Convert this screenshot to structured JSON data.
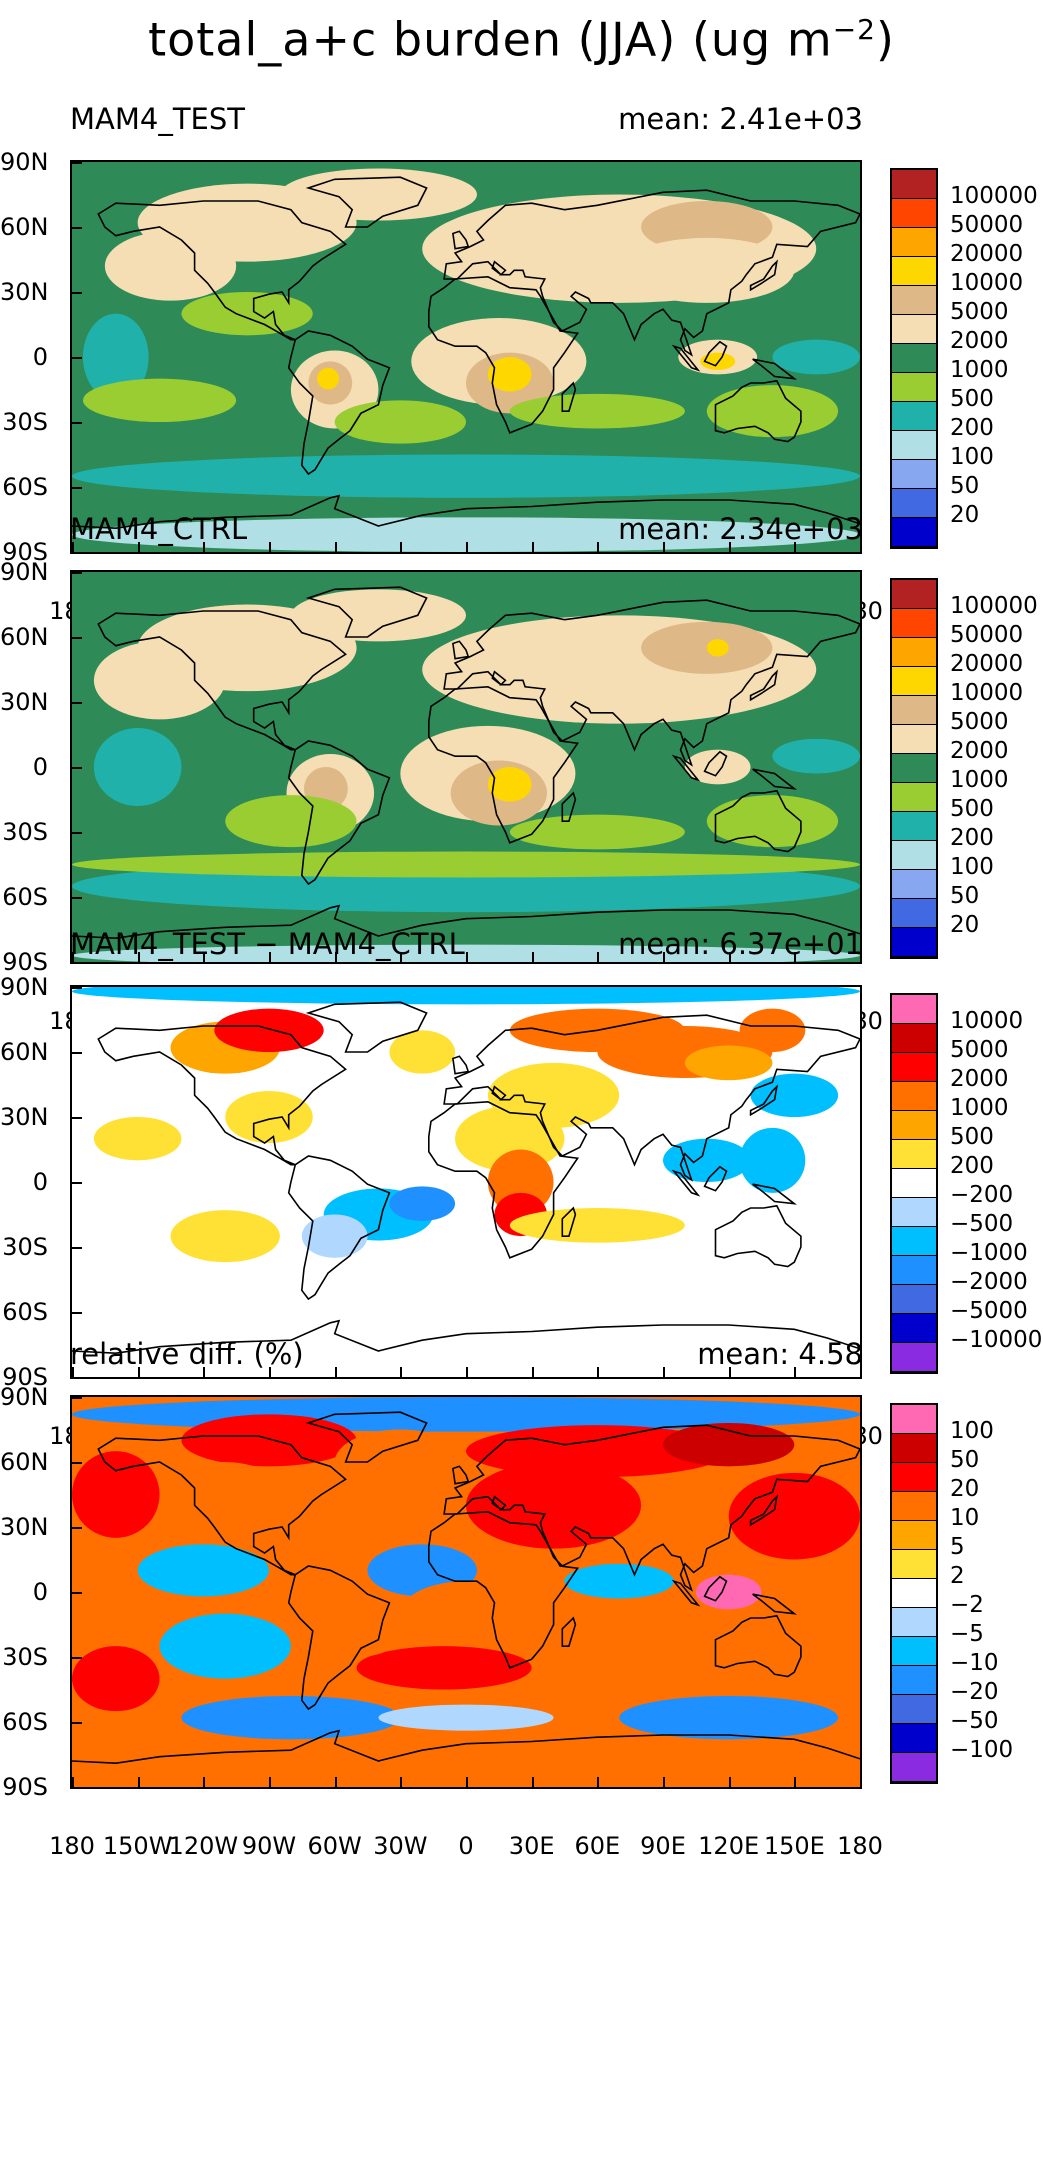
{
  "title": "total_a+c burden (JJA) (ug m",
  "title_sup": "−2",
  "title_close": ")",
  "lat_labels": [
    "90N",
    "60N",
    "30N",
    "0",
    "30S",
    "60S",
    "90S"
  ],
  "lon_labels": [
    "180",
    "150W",
    "120W",
    "90W",
    "60W",
    "30W",
    "0",
    "30E",
    "60E",
    "90E",
    "120E",
    "150E",
    "180"
  ],
  "panels": [
    {
      "id": "test",
      "label": "MAM4_TEST",
      "mean": "mean: 2.41e+03",
      "base_color": "#2e8b57",
      "cb_colors": [
        "#b22222",
        "#ff4500",
        "#ffa500",
        "#ffd700",
        "#deb887",
        "#f5deb3",
        "#2e8b57",
        "#9acd32",
        "#20b2aa",
        "#b0e0e6",
        "#87a8f0",
        "#4169e1",
        "#0000cd"
      ],
      "cb_labels": [
        "100000",
        "50000",
        "20000",
        "10000",
        "5000",
        "2000",
        "1000",
        "500",
        "200",
        "100",
        "50",
        "20"
      ]
    },
    {
      "id": "ctrl",
      "label": "MAM4_CTRL",
      "mean": "mean: 2.34e+03",
      "base_color": "#2e8b57",
      "cb_colors": [
        "#b22222",
        "#ff4500",
        "#ffa500",
        "#ffd700",
        "#deb887",
        "#f5deb3",
        "#2e8b57",
        "#9acd32",
        "#20b2aa",
        "#b0e0e6",
        "#87a8f0",
        "#4169e1",
        "#0000cd"
      ],
      "cb_labels": [
        "100000",
        "50000",
        "20000",
        "10000",
        "5000",
        "2000",
        "1000",
        "500",
        "200",
        "100",
        "50",
        "20"
      ]
    },
    {
      "id": "diff",
      "label": "MAM4_TEST − MAM4_CTRL",
      "mean": "mean: 6.37e+01",
      "base_color": "#ffffff",
      "cb_colors": [
        "#ff69b4",
        "#cd0000",
        "#ff0000",
        "#ff7000",
        "#ffa500",
        "#ffe135",
        "#ffffff",
        "#b0d8ff",
        "#00bfff",
        "#1e90ff",
        "#4169e1",
        "#0000cd",
        "#8a2be2"
      ],
      "cb_labels": [
        "10000",
        "5000",
        "2000",
        "1000",
        "500",
        "200",
        "−200",
        "−500",
        "−1000",
        "−2000",
        "−5000",
        "−10000"
      ]
    },
    {
      "id": "rel",
      "label": "relative diff. (%)",
      "mean": "mean:   4.58",
      "base_color": "#ff7000",
      "cb_colors": [
        "#ff69b4",
        "#cd0000",
        "#ff0000",
        "#ff7000",
        "#ffa500",
        "#ffe135",
        "#ffffff",
        "#b0d8ff",
        "#00bfff",
        "#1e90ff",
        "#4169e1",
        "#0000cd",
        "#8a2be2"
      ],
      "cb_labels": [
        "100",
        "50",
        "20",
        "10",
        "5",
        "2",
        "−2",
        "−5",
        "−10",
        "−20",
        "−50",
        "−100"
      ]
    }
  ]
}
